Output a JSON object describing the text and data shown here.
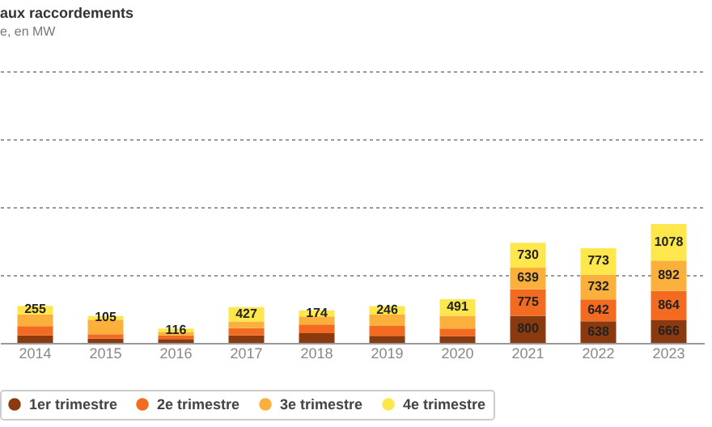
{
  "chart_data": {
    "type": "bar",
    "title": "aux raccordements",
    "subtitle": "e, en MW",
    "categories": [
      "2014",
      "2015",
      "2016",
      "2017",
      "2018",
      "2019",
      "2020",
      "2021",
      "2022",
      "2023"
    ],
    "stacked": true,
    "legend": "bottom",
    "grid": "y",
    "tick_labels": "x",
    "ylim": [
      0,
      8000
    ],
    "yticks": [
      {
        "value": 0,
        "label": null
      },
      {
        "value": 2000,
        "label": null
      },
      {
        "value": 4000,
        "label": null
      },
      {
        "value": 6000,
        "label": null
      },
      {
        "value": 8000,
        "label": null
      }
    ],
    "series": [
      {
        "name": "1er trimestre",
        "color": "#8b3a0f",
        "values": [
          221,
          126,
          113,
          222,
          284,
          207,
          200,
          800,
          638,
          666
        ],
        "value_labels": [
          null,
          null,
          null,
          null,
          null,
          null,
          null,
          "800",
          "638",
          "666"
        ]
      },
      {
        "name": "2e trimestre",
        "color": "#f26b21",
        "values": [
          274,
          130,
          106,
          210,
          257,
          292,
          224,
          775,
          642,
          864
        ],
        "value_labels": [
          null,
          null,
          null,
          null,
          null,
          null,
          null,
          "775",
          "642",
          "864"
        ]
      },
      {
        "name": "3e trimestre",
        "color": "#fbb03b",
        "values": [
          342,
          429,
          88,
          196,
          241,
          336,
          371,
          639,
          732,
          892
        ],
        "value_labels": [
          null,
          null,
          null,
          null,
          null,
          null,
          null,
          "639",
          "732",
          "892"
        ]
      },
      {
        "name": "4e trimestre",
        "color": "#fde74c",
        "values": [
          255,
          105,
          116,
          427,
          174,
          246,
          491,
          730,
          773,
          1078
        ],
        "value_labels": [
          "255",
          "105",
          "116",
          "427",
          "174",
          "246",
          "491",
          "730",
          "773",
          "1078"
        ]
      }
    ]
  }
}
